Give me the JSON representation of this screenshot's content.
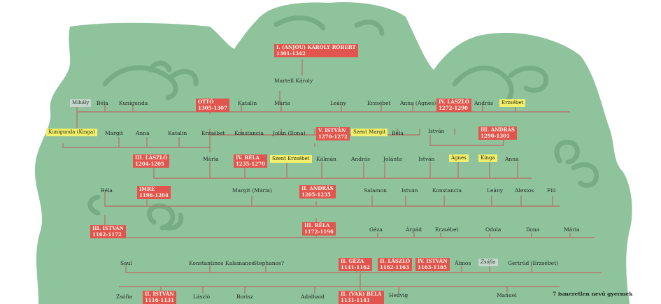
{
  "colors": {
    "background": "#8fc39b",
    "branch": "#76ad84",
    "line": "#b07a6e",
    "king_box": "#e2544e",
    "saint_box": "#f2ef6c",
    "highlight_box": "#c6d6cb"
  },
  "people": {
    "karoly_robert": {
      "name": "I. (ANJOU) KÁROLY RÓBERT",
      "dates": "1301-1342"
    },
    "martell_karoly": {
      "name": "Martell Károly"
    },
    "mihaly": {
      "name": "Mihály"
    },
    "bela_top": {
      "name": "Béla"
    },
    "kunigunda_top": {
      "name": "Kunigunda"
    },
    "otto": {
      "name": "OTTÓ",
      "dates": "1305-1307"
    },
    "katalin_top": {
      "name": "Katalin"
    },
    "maria_top": {
      "name": "Mária"
    },
    "leany_top": {
      "name": "Leány"
    },
    "erzsebet_top": {
      "name": "Erzsébet"
    },
    "anna_agnes": {
      "name": "Anna (Ágnes)"
    },
    "laszlo_iv": {
      "name": "IV. LÁSZLÓ",
      "dates": "1272-1290"
    },
    "andras_top": {
      "name": "András"
    },
    "erzsebet_saint_top": {
      "name": "Erzsébet"
    },
    "kunigunda_kinga": {
      "name": "Kunigunda (Kinga)"
    },
    "margit_2": {
      "name": "Margit"
    },
    "anna_2": {
      "name": "Anna"
    },
    "katalin_2": {
      "name": "Katalin"
    },
    "erzsebet_2": {
      "name": "Erzsébet"
    },
    "konstancia_2": {
      "name": "Konstancia"
    },
    "jolan_ilona": {
      "name": "Jolán (Ilona)"
    },
    "istvan_v": {
      "name": "V. ISTVÁN",
      "dates": "1270-1272"
    },
    "szent_margit": {
      "name": "Szent Margit"
    },
    "bela_2": {
      "name": "Béla"
    },
    "istvan_2": {
      "name": "István"
    },
    "andras_iii": {
      "name": "III. ANDRÁS",
      "dates": "1290-1301"
    },
    "laszlo_iii": {
      "name": "III. LÁSZLÓ",
      "dates": "1204-1205"
    },
    "maria_3": {
      "name": "Mária"
    },
    "bela_iv": {
      "name": "IV. BÉLA",
      "dates": "1235-1270"
    },
    "szent_erzsebet": {
      "name": "Szent Erzsébet"
    },
    "kalman_3": {
      "name": "Kálmán"
    },
    "andras_3": {
      "name": "András"
    },
    "jolanta_3": {
      "name": "Jolánta"
    },
    "istvan_3": {
      "name": "István"
    },
    "agnes_3": {
      "name": "Ágnes"
    },
    "kinga_3": {
      "name": "Kinga"
    },
    "anna_3": {
      "name": "Anna"
    },
    "bela_4": {
      "name": "Béla"
    },
    "imre": {
      "name": "IMRE",
      "dates": "1196-1204"
    },
    "margit_maria": {
      "name": "Margit (Mária)"
    },
    "andras_ii": {
      "name": "II. ANDRÁS",
      "dates": "1205-1235"
    },
    "salamon_4": {
      "name": "Salamon"
    },
    "istvan_4": {
      "name": "István"
    },
    "konstancia_4": {
      "name": "Konstancia"
    },
    "leany_4": {
      "name": "Leány"
    },
    "alexios_4": {
      "name": "Alexios"
    },
    "fiu_4": {
      "name": "Fiú"
    },
    "istvan_iii": {
      "name": "III. ISTVÁN",
      "dates": "1162-1172"
    },
    "bela_iii": {
      "name": "III. BÉLA",
      "dates": "1172-1196"
    },
    "geza_5": {
      "name": "Géza"
    },
    "arpad_5": {
      "name": "Árpád"
    },
    "erzsebet_5": {
      "name": "Erzsébet"
    },
    "odola_5": {
      "name": "Odola"
    },
    "ilona_5": {
      "name": "Ilona"
    },
    "maria_5": {
      "name": "Mária"
    },
    "saul_6": {
      "name": "Saul"
    },
    "konstantinos": {
      "name": "Konstantinos Kalamanos"
    },
    "stephanos": {
      "name": "Stephanos?"
    },
    "geza_ii": {
      "name": "II. GÉZA",
      "dates": "1141-1162"
    },
    "laszlo_ii": {
      "name": "II. LÁSZLÓ",
      "dates": "1162-1163"
    },
    "istvan_iv": {
      "name": "IV. ISTVÁN",
      "dates": "1163-1165"
    },
    "almos_6": {
      "name": "Álmos"
    },
    "zsofia_6": {
      "name": "Zsófia"
    },
    "gertrud": {
      "name": "Gertrúd (Erzsébet)"
    },
    "zsofia_7": {
      "name": "Zsófia"
    },
    "istvan_ii": {
      "name": "II. ISTVÁN",
      "dates": "1116-1131"
    },
    "laszlo_7": {
      "name": "László"
    },
    "borisz_7": {
      "name": "Borisz"
    },
    "adalhaid_7": {
      "name": "Adalhaid"
    },
    "bela_ii": {
      "name": "II. (VAK) BÉLA",
      "dates": "1131-1141"
    },
    "hedvig_7": {
      "name": "Hedvig"
    },
    "manuel_7": {
      "name": "Manuel"
    },
    "unknown_children": {
      "name": "7 ismeretlen nevű gyermek"
    }
  }
}
